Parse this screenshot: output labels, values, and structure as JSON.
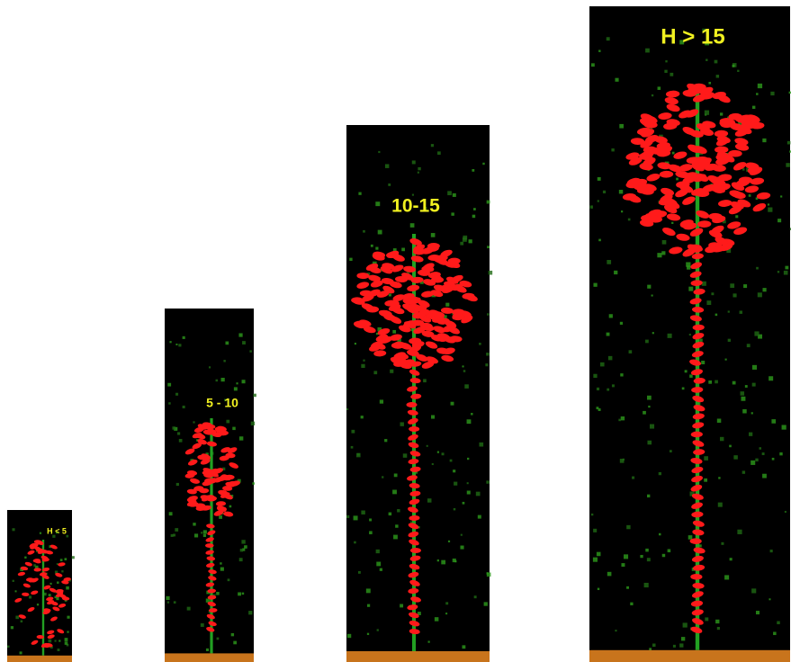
{
  "panels": [
    {
      "label": "H < 5"
    },
    {
      "label": "5 - 10"
    },
    {
      "label": "10-15"
    },
    {
      "label": "H > 15"
    }
  ]
}
